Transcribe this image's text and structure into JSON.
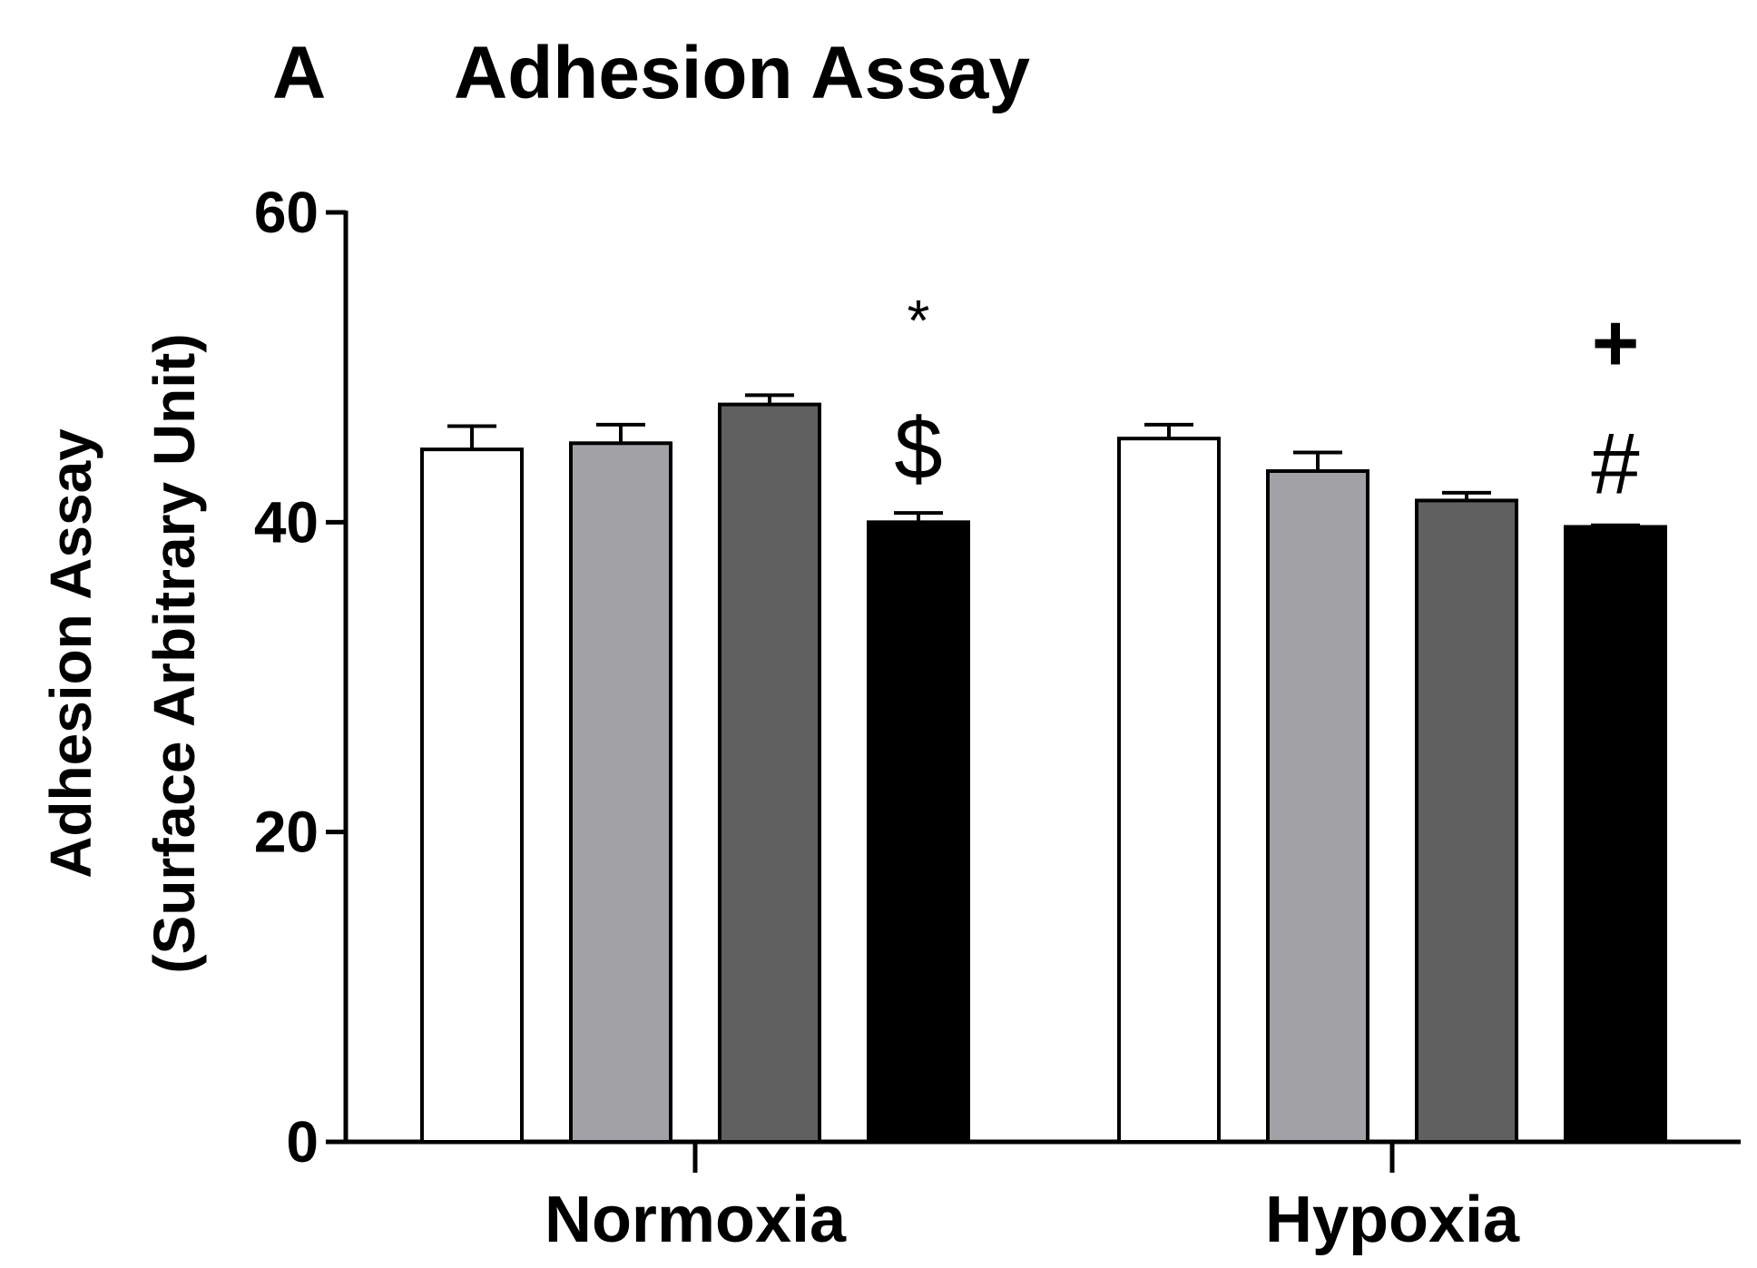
{
  "chart_data": {
    "type": "bar",
    "panel_label": "A",
    "title": "Adhesion Assay",
    "xlabel": "",
    "ylabel": [
      "Adhesion Assay",
      "(Surface Arbitrary Unit)"
    ],
    "ylim": [
      0,
      60
    ],
    "yticks": [
      "0",
      "20",
      "40",
      "60"
    ],
    "categories": [
      "Normoxia",
      "Hypoxia"
    ],
    "grid": false,
    "legend": "none",
    "bar_colors": [
      "#ffffff",
      "#a2a1a6",
      "#606060",
      "#000000"
    ],
    "series": [
      {
        "color": "#ffffff",
        "values": [
          44.7,
          45.4
        ],
        "errors": [
          1.5,
          0.9
        ]
      },
      {
        "color": "#a2a1a6",
        "values": [
          45.1,
          43.3
        ],
        "errors": [
          1.2,
          1.2
        ]
      },
      {
        "color": "#606060",
        "values": [
          47.6,
          41.4
        ],
        "errors": [
          0.6,
          0.5
        ]
      },
      {
        "color": "#000000",
        "values": [
          40.0,
          39.7
        ],
        "errors": [
          0.6,
          0.1
        ]
      }
    ],
    "annotations": [
      {
        "text": "*",
        "category": "Normoxia",
        "series_index": 3,
        "level": 1
      },
      {
        "text": "$",
        "category": "Normoxia",
        "series_index": 3,
        "level": 0
      },
      {
        "text": "+",
        "category": "Hypoxia",
        "series_index": 3,
        "level": 1
      },
      {
        "text": "#",
        "category": "Hypoxia",
        "series_index": 3,
        "level": 0
      }
    ]
  }
}
